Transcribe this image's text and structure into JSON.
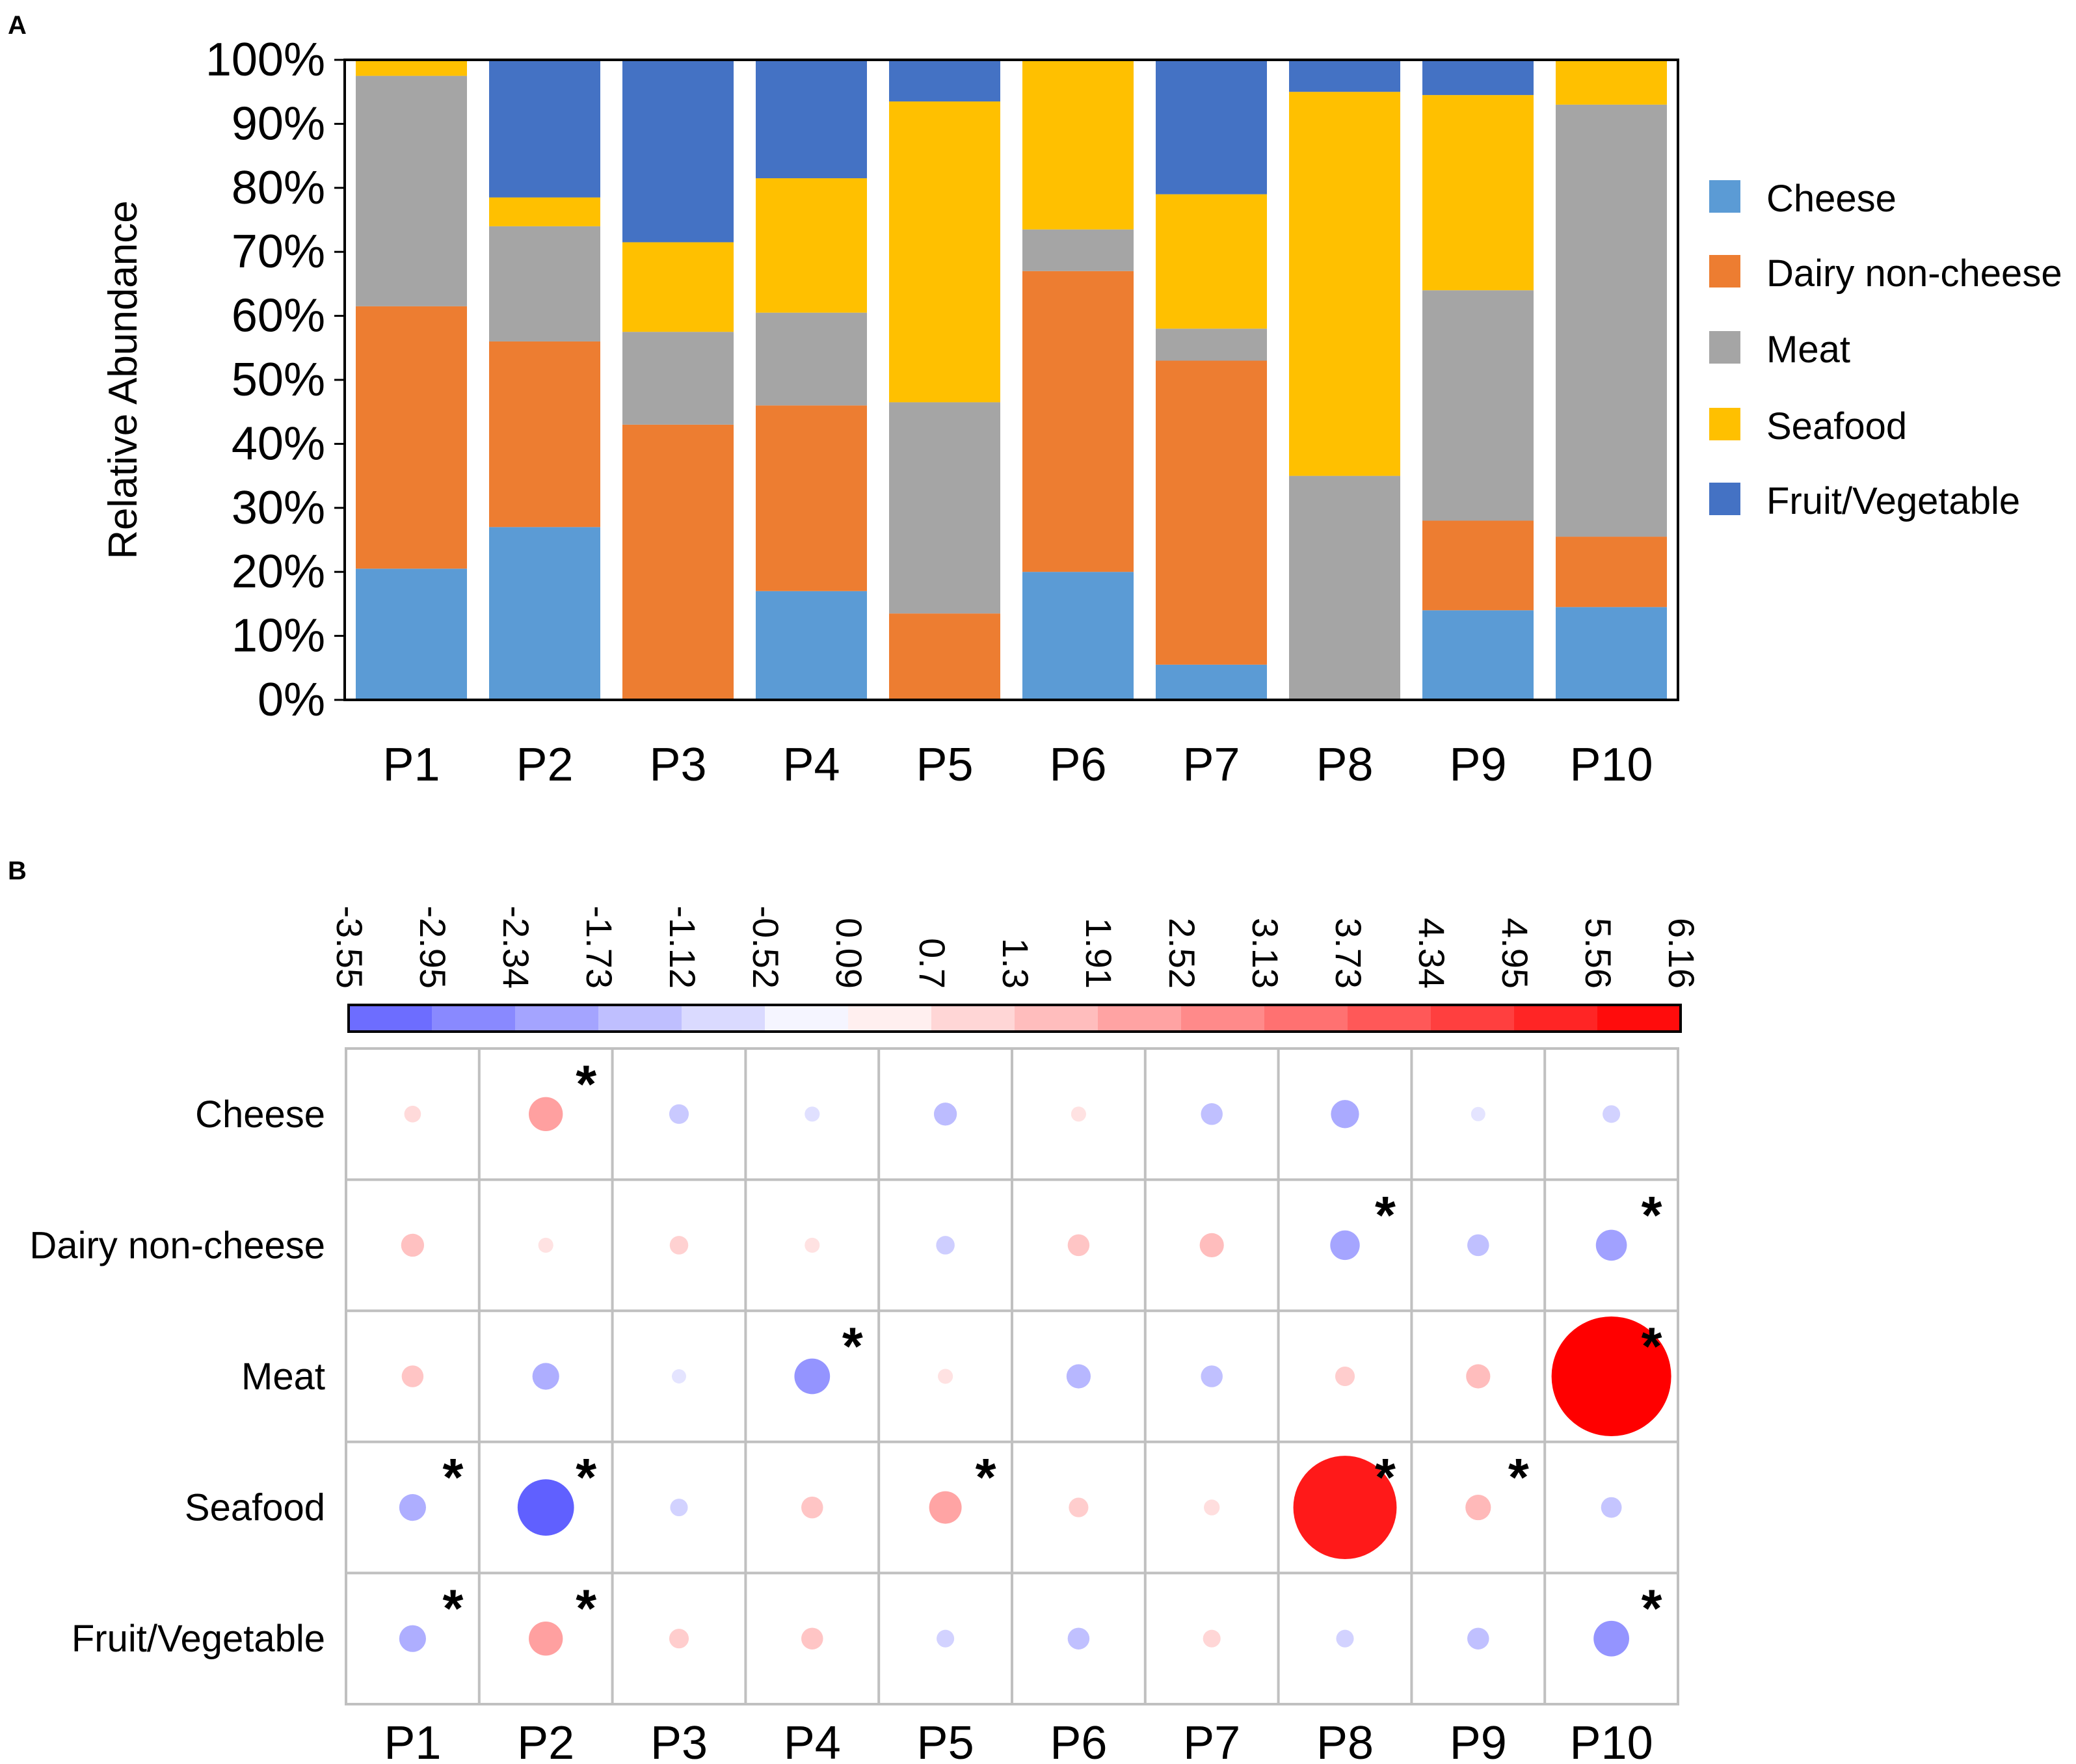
{
  "chart_data": [
    {
      "panel_label": "A",
      "type": "bar",
      "stacked": true,
      "ylabel": "Relative Abundance",
      "xlabel": "",
      "ylim": [
        0,
        100
      ],
      "yticks": [
        0,
        10,
        20,
        30,
        40,
        50,
        60,
        70,
        80,
        90,
        100
      ],
      "ytick_suffix": "%",
      "legend_position": "right",
      "categories": [
        "P1",
        "P2",
        "P3",
        "P4",
        "P5",
        "P6",
        "P7",
        "P8",
        "P9",
        "P10"
      ],
      "series": [
        {
          "name": "Cheese",
          "color": "#5B9BD5",
          "values": [
            20.5,
            27,
            0,
            17,
            0,
            20,
            5.5,
            0,
            14,
            14.5
          ]
        },
        {
          "name": "Dairy non-cheese",
          "color": "#ED7D31",
          "values": [
            41,
            29,
            43,
            29,
            13.5,
            47,
            47.5,
            0,
            14,
            11
          ]
        },
        {
          "name": "Meat",
          "color": "#A5A5A5",
          "values": [
            36,
            18,
            14.5,
            14.5,
            33,
            6.5,
            5,
            35,
            36,
            67.5
          ]
        },
        {
          "name": "Seafood",
          "color": "#FFC000",
          "values": [
            2.5,
            4.5,
            14,
            21,
            47,
            26.5,
            21,
            60,
            30.5,
            7
          ]
        },
        {
          "name": "Fruit/Vegetable",
          "color": "#4472C4",
          "values": [
            0,
            21.5,
            28.5,
            18.5,
            6.5,
            0,
            21,
            5,
            5.5,
            0
          ]
        }
      ]
    },
    {
      "panel_label": "B",
      "type": "heatmap",
      "subtype": "bubble",
      "colorbar_ticks": [
        "-3.55",
        "-2.95",
        "-2.34",
        "-1.73",
        "-1.12",
        "-0.52",
        "0.09",
        "0.7",
        "1.3",
        "1.91",
        "2.52",
        "3.13",
        "3.73",
        "4.34",
        "4.95",
        "5.56",
        "6.16"
      ],
      "colorbar_range": [
        -3.55,
        6.16
      ],
      "columns": [
        "P1",
        "P2",
        "P3",
        "P4",
        "P5",
        "P6",
        "P7",
        "P8",
        "P9",
        "P10"
      ],
      "rows": [
        "Cheese",
        "Dairy non-cheese",
        "Meat",
        "Seafood",
        "Fruit/Vegetable"
      ],
      "values": [
        [
          0.9,
          2.3,
          -1.2,
          -0.7,
          -1.5,
          0.7,
          -1.4,
          -1.9,
          -0.6,
          -1.0
        ],
        [
          1.5,
          0.7,
          1.1,
          0.7,
          -1.1,
          1.4,
          1.6,
          -2.0,
          -1.4,
          -2.1
        ],
        [
          1.4,
          -1.8,
          -0.6,
          -2.4,
          0.7,
          -1.6,
          -1.4,
          1.2,
          1.6,
          6.16
        ],
        [
          -1.8,
          -3.55,
          -1.0,
          1.4,
          2.2,
          1.2,
          0.8,
          5.56,
          1.7,
          -1.3
        ],
        [
          -1.8,
          2.3,
          1.2,
          1.4,
          -1.0,
          -1.4,
          1.0,
          -1.0,
          -1.4,
          -2.4
        ]
      ],
      "significance_mark": "*",
      "significant": [
        [
          false,
          true,
          false,
          false,
          false,
          false,
          false,
          false,
          false,
          false
        ],
        [
          false,
          false,
          false,
          false,
          false,
          false,
          false,
          true,
          false,
          true
        ],
        [
          false,
          false,
          false,
          true,
          false,
          false,
          false,
          false,
          false,
          true
        ],
        [
          true,
          true,
          false,
          false,
          true,
          false,
          false,
          true,
          true,
          false
        ],
        [
          true,
          true,
          false,
          false,
          false,
          false,
          false,
          false,
          false,
          true
        ]
      ]
    }
  ]
}
